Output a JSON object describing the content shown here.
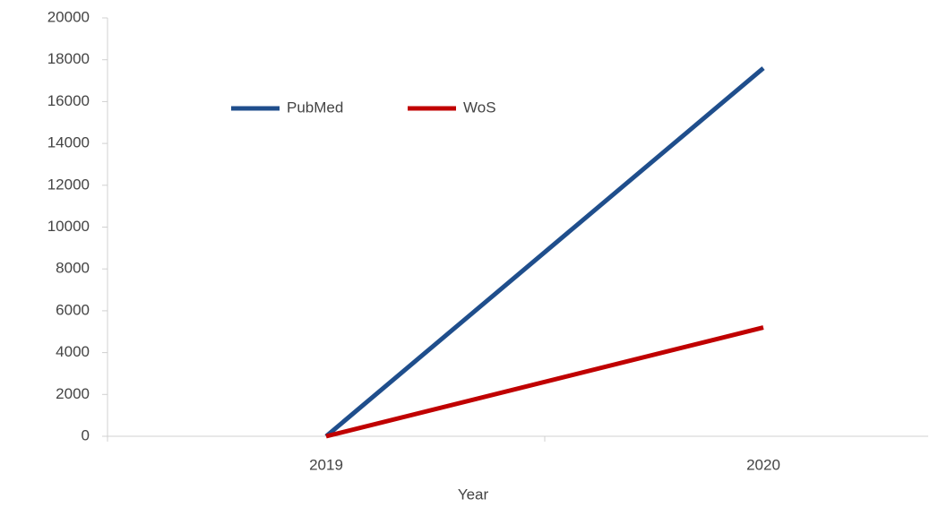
{
  "chart_data": {
    "type": "line",
    "x_label": "Year",
    "categories": [
      "2019",
      "2020"
    ],
    "series": [
      {
        "name": "PubMed",
        "color": "#1f4e8c",
        "values": [
          0,
          17600
        ]
      },
      {
        "name": "WoS",
        "color": "#c00000",
        "values": [
          0,
          5200
        ]
      }
    ],
    "ylim": [
      0,
      20000
    ],
    "yticks": [
      0,
      2000,
      4000,
      6000,
      8000,
      10000,
      12000,
      14000,
      16000,
      18000,
      20000
    ],
    "legend": "top-left"
  }
}
